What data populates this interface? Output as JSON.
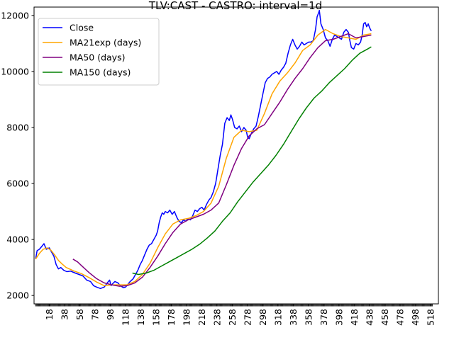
{
  "chart_data": {
    "type": "line",
    "title": "TLV:CAST - CASTRO: interval=1d",
    "xlabel": "",
    "ylabel": "",
    "xlim": [
      -2,
      528
    ],
    "ylim": [
      1700,
      12300
    ],
    "x_ticks": [
      18,
      38,
      58,
      78,
      98,
      118,
      138,
      158,
      178,
      198,
      218,
      238,
      258,
      278,
      298,
      318,
      338,
      358,
      378,
      398,
      418,
      438,
      458,
      478,
      498,
      518
    ],
    "y_ticks": [
      2000,
      4000,
      6000,
      8000,
      10000,
      12000
    ],
    "y_tick_labels": [
      "2000",
      "4000",
      "6000",
      "8000",
      "10000",
      "12000"
    ],
    "grid": false,
    "legend": {
      "position": "top-left"
    },
    "series": [
      {
        "name": "Close",
        "color": "#0000ff",
        "points": [
          [
            0,
            3300
          ],
          [
            2,
            3600
          ],
          [
            5,
            3650
          ],
          [
            8,
            3750
          ],
          [
            11,
            3850
          ],
          [
            14,
            3650
          ],
          [
            18,
            3700
          ],
          [
            21,
            3550
          ],
          [
            24,
            3400
          ],
          [
            27,
            3100
          ],
          [
            30,
            2950
          ],
          [
            33,
            3000
          ],
          [
            37,
            2900
          ],
          [
            41,
            2850
          ],
          [
            46,
            2870
          ],
          [
            52,
            2800
          ],
          [
            57,
            2750
          ],
          [
            62,
            2700
          ],
          [
            67,
            2550
          ],
          [
            72,
            2500
          ],
          [
            76,
            2350
          ],
          [
            80,
            2300
          ],
          [
            85,
            2250
          ],
          [
            90,
            2300
          ],
          [
            94,
            2450
          ],
          [
            97,
            2550
          ],
          [
            99,
            2350
          ],
          [
            101,
            2420
          ],
          [
            104,
            2500
          ],
          [
            108,
            2450
          ],
          [
            111,
            2350
          ],
          [
            115,
            2280
          ],
          [
            118,
            2300
          ],
          [
            121,
            2400
          ],
          [
            124,
            2500
          ],
          [
            128,
            2600
          ],
          [
            131,
            2750
          ],
          [
            134,
            2900
          ],
          [
            137,
            3100
          ],
          [
            140,
            3250
          ],
          [
            143,
            3450
          ],
          [
            146,
            3650
          ],
          [
            149,
            3800
          ],
          [
            152,
            3850
          ],
          [
            155,
            4000
          ],
          [
            158,
            4150
          ],
          [
            160,
            4300
          ],
          [
            162,
            4600
          ],
          [
            164,
            4800
          ],
          [
            166,
            4950
          ],
          [
            168,
            4900
          ],
          [
            170,
            5000
          ],
          [
            173,
            4950
          ],
          [
            176,
            5050
          ],
          [
            179,
            4900
          ],
          [
            182,
            5000
          ],
          [
            185,
            4800
          ],
          [
            188,
            4650
          ],
          [
            191,
            4600
          ],
          [
            194,
            4700
          ],
          [
            197,
            4650
          ],
          [
            200,
            4750
          ],
          [
            203,
            4700
          ],
          [
            206,
            4850
          ],
          [
            209,
            5050
          ],
          [
            212,
            5000
          ],
          [
            215,
            5100
          ],
          [
            218,
            5150
          ],
          [
            221,
            5050
          ],
          [
            224,
            5250
          ],
          [
            227,
            5400
          ],
          [
            230,
            5500
          ],
          [
            233,
            5700
          ],
          [
            236,
            6000
          ],
          [
            239,
            6500
          ],
          [
            242,
            7000
          ],
          [
            245,
            7400
          ],
          [
            248,
            8150
          ],
          [
            251,
            8350
          ],
          [
            254,
            8250
          ],
          [
            256,
            8450
          ],
          [
            258,
            8300
          ],
          [
            261,
            8000
          ],
          [
            264,
            7950
          ],
          [
            267,
            8050
          ],
          [
            270,
            7850
          ],
          [
            273,
            8000
          ],
          [
            276,
            7900
          ],
          [
            278,
            7650
          ],
          [
            280,
            7600
          ],
          [
            283,
            7800
          ],
          [
            286,
            7950
          ],
          [
            289,
            8050
          ],
          [
            292,
            8400
          ],
          [
            295,
            8800
          ],
          [
            298,
            9200
          ],
          [
            301,
            9600
          ],
          [
            304,
            9750
          ],
          [
            307,
            9800
          ],
          [
            310,
            9900
          ],
          [
            313,
            9950
          ],
          [
            316,
            10000
          ],
          [
            319,
            9900
          ],
          [
            322,
            10050
          ],
          [
            325,
            10150
          ],
          [
            328,
            10300
          ],
          [
            331,
            10650
          ],
          [
            334,
            10950
          ],
          [
            337,
            11150
          ],
          [
            340,
            10950
          ],
          [
            343,
            10800
          ],
          [
            346,
            10900
          ],
          [
            349,
            11050
          ],
          [
            352,
            10950
          ],
          [
            355,
            11000
          ],
          [
            358,
            11050
          ],
          [
            361,
            11050
          ],
          [
            364,
            11100
          ],
          [
            367,
            11500
          ],
          [
            369,
            11950
          ],
          [
            371,
            12100
          ],
          [
            372,
            12180
          ],
          [
            374,
            11700
          ],
          [
            377,
            11500
          ],
          [
            380,
            11200
          ],
          [
            383,
            11100
          ],
          [
            386,
            10900
          ],
          [
            389,
            11150
          ],
          [
            392,
            11300
          ],
          [
            395,
            11250
          ],
          [
            398,
            11200
          ],
          [
            401,
            11150
          ],
          [
            404,
            11400
          ],
          [
            407,
            11500
          ],
          [
            410,
            11400
          ],
          [
            412,
            11100
          ],
          [
            414,
            10850
          ],
          [
            417,
            10800
          ],
          [
            420,
            11000
          ],
          [
            423,
            10950
          ],
          [
            426,
            11050
          ],
          [
            428,
            11300
          ],
          [
            430,
            11700
          ],
          [
            432,
            11750
          ],
          [
            434,
            11600
          ],
          [
            436,
            11700
          ],
          [
            438,
            11550
          ],
          [
            440,
            11450
          ]
        ]
      },
      {
        "name": "MA21exp (days)",
        "color": "#ffa500",
        "points": [
          [
            0,
            3300
          ],
          [
            5,
            3500
          ],
          [
            10,
            3650
          ],
          [
            15,
            3700
          ],
          [
            20,
            3620
          ],
          [
            25,
            3450
          ],
          [
            30,
            3250
          ],
          [
            35,
            3120
          ],
          [
            40,
            3000
          ],
          [
            50,
            2880
          ],
          [
            60,
            2780
          ],
          [
            70,
            2640
          ],
          [
            80,
            2480
          ],
          [
            90,
            2350
          ],
          [
            100,
            2380
          ],
          [
            110,
            2380
          ],
          [
            120,
            2380
          ],
          [
            130,
            2500
          ],
          [
            140,
            2750
          ],
          [
            150,
            3150
          ],
          [
            160,
            3700
          ],
          [
            170,
            4200
          ],
          [
            180,
            4550
          ],
          [
            190,
            4700
          ],
          [
            200,
            4750
          ],
          [
            210,
            4850
          ],
          [
            220,
            5000
          ],
          [
            230,
            5300
          ],
          [
            240,
            5900
          ],
          [
            250,
            6900
          ],
          [
            260,
            7650
          ],
          [
            270,
            7900
          ],
          [
            280,
            7850
          ],
          [
            290,
            7900
          ],
          [
            300,
            8500
          ],
          [
            310,
            9200
          ],
          [
            320,
            9650
          ],
          [
            330,
            9950
          ],
          [
            340,
            10300
          ],
          [
            350,
            10750
          ],
          [
            360,
            10950
          ],
          [
            370,
            11300
          ],
          [
            380,
            11500
          ],
          [
            390,
            11350
          ],
          [
            400,
            11250
          ],
          [
            410,
            11200
          ],
          [
            420,
            11150
          ],
          [
            430,
            11300
          ],
          [
            440,
            11350
          ]
        ]
      },
      {
        "name": "MA50 (days)",
        "color": "#800080",
        "points": [
          [
            49,
            3300
          ],
          [
            55,
            3200
          ],
          [
            60,
            3070
          ],
          [
            70,
            2820
          ],
          [
            80,
            2600
          ],
          [
            90,
            2450
          ],
          [
            100,
            2380
          ],
          [
            110,
            2330
          ],
          [
            120,
            2350
          ],
          [
            130,
            2450
          ],
          [
            140,
            2650
          ],
          [
            150,
            3000
          ],
          [
            160,
            3400
          ],
          [
            170,
            3850
          ],
          [
            180,
            4250
          ],
          [
            190,
            4550
          ],
          [
            200,
            4700
          ],
          [
            210,
            4800
          ],
          [
            220,
            4900
          ],
          [
            230,
            5050
          ],
          [
            240,
            5300
          ],
          [
            250,
            5950
          ],
          [
            260,
            6650
          ],
          [
            270,
            7250
          ],
          [
            280,
            7700
          ],
          [
            290,
            7950
          ],
          [
            300,
            8100
          ],
          [
            310,
            8500
          ],
          [
            320,
            8900
          ],
          [
            330,
            9350
          ],
          [
            340,
            9750
          ],
          [
            350,
            10100
          ],
          [
            360,
            10500
          ],
          [
            370,
            10850
          ],
          [
            380,
            11100
          ],
          [
            390,
            11150
          ],
          [
            400,
            11250
          ],
          [
            410,
            11350
          ],
          [
            420,
            11200
          ],
          [
            430,
            11250
          ],
          [
            440,
            11300
          ]
        ]
      },
      {
        "name": "MA150 (days)",
        "color": "#008000",
        "points": [
          [
            127,
            2800
          ],
          [
            135,
            2750
          ],
          [
            145,
            2800
          ],
          [
            155,
            2900
          ],
          [
            165,
            3050
          ],
          [
            175,
            3200
          ],
          [
            185,
            3350
          ],
          [
            195,
            3500
          ],
          [
            205,
            3650
          ],
          [
            215,
            3830
          ],
          [
            225,
            4050
          ],
          [
            235,
            4300
          ],
          [
            245,
            4650
          ],
          [
            255,
            4950
          ],
          [
            265,
            5350
          ],
          [
            275,
            5700
          ],
          [
            285,
            6050
          ],
          [
            295,
            6350
          ],
          [
            305,
            6650
          ],
          [
            315,
            7000
          ],
          [
            325,
            7400
          ],
          [
            335,
            7850
          ],
          [
            345,
            8300
          ],
          [
            355,
            8700
          ],
          [
            365,
            9050
          ],
          [
            375,
            9300
          ],
          [
            385,
            9600
          ],
          [
            395,
            9850
          ],
          [
            405,
            10100
          ],
          [
            415,
            10400
          ],
          [
            425,
            10650
          ],
          [
            435,
            10800
          ],
          [
            440,
            10880
          ]
        ]
      }
    ]
  }
}
